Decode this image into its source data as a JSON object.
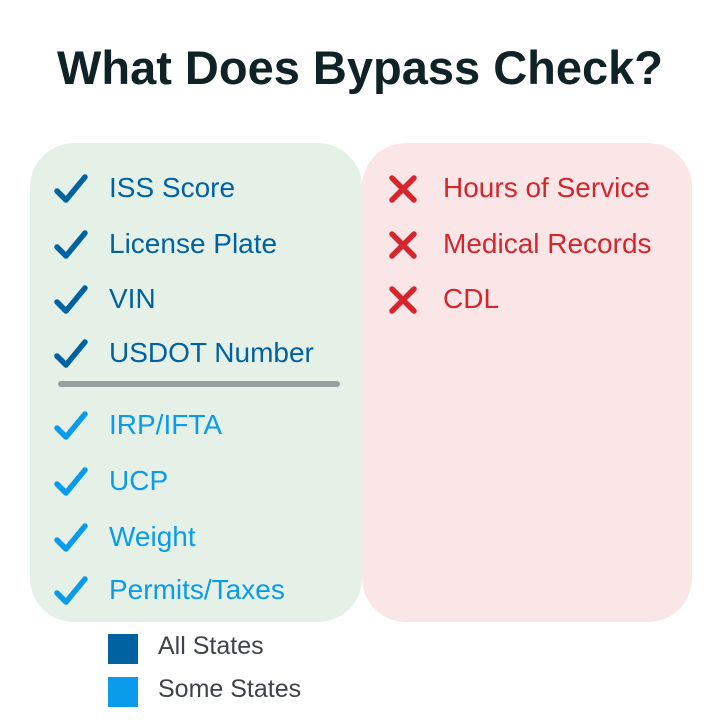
{
  "title": "What Does Bypass Check?",
  "colors": {
    "all_states": "#0062a1",
    "some_states": "#0a9bea",
    "not_checked": "#d5262e",
    "checked_bg": "#e5f1e7",
    "not_checked_bg": "#fae6e7"
  },
  "checked_all_states": [
    {
      "label": "ISS Score",
      "icon": "checkmark-icon"
    },
    {
      "label": "License Plate",
      "icon": "checkmark-icon"
    },
    {
      "label": "VIN",
      "icon": "checkmark-icon"
    },
    {
      "label": "USDOT Number",
      "icon": "checkmark-icon"
    }
  ],
  "checked_some_states": [
    {
      "label": "IRP/IFTA",
      "icon": "checkmark-icon"
    },
    {
      "label": "UCP",
      "icon": "checkmark-icon"
    },
    {
      "label": "Weight",
      "icon": "checkmark-icon"
    },
    {
      "label": "Permits/Taxes",
      "icon": "checkmark-icon"
    }
  ],
  "not_checked": [
    {
      "label": "Hours of Service",
      "icon": "x-mark-icon"
    },
    {
      "label": "Medical Records",
      "icon": "x-mark-icon"
    },
    {
      "label": "CDL",
      "icon": "x-mark-icon"
    }
  ],
  "legend": [
    {
      "label": "All States",
      "color": "#0062a1"
    },
    {
      "label": "Some States",
      "color": "#0a9bea"
    }
  ]
}
